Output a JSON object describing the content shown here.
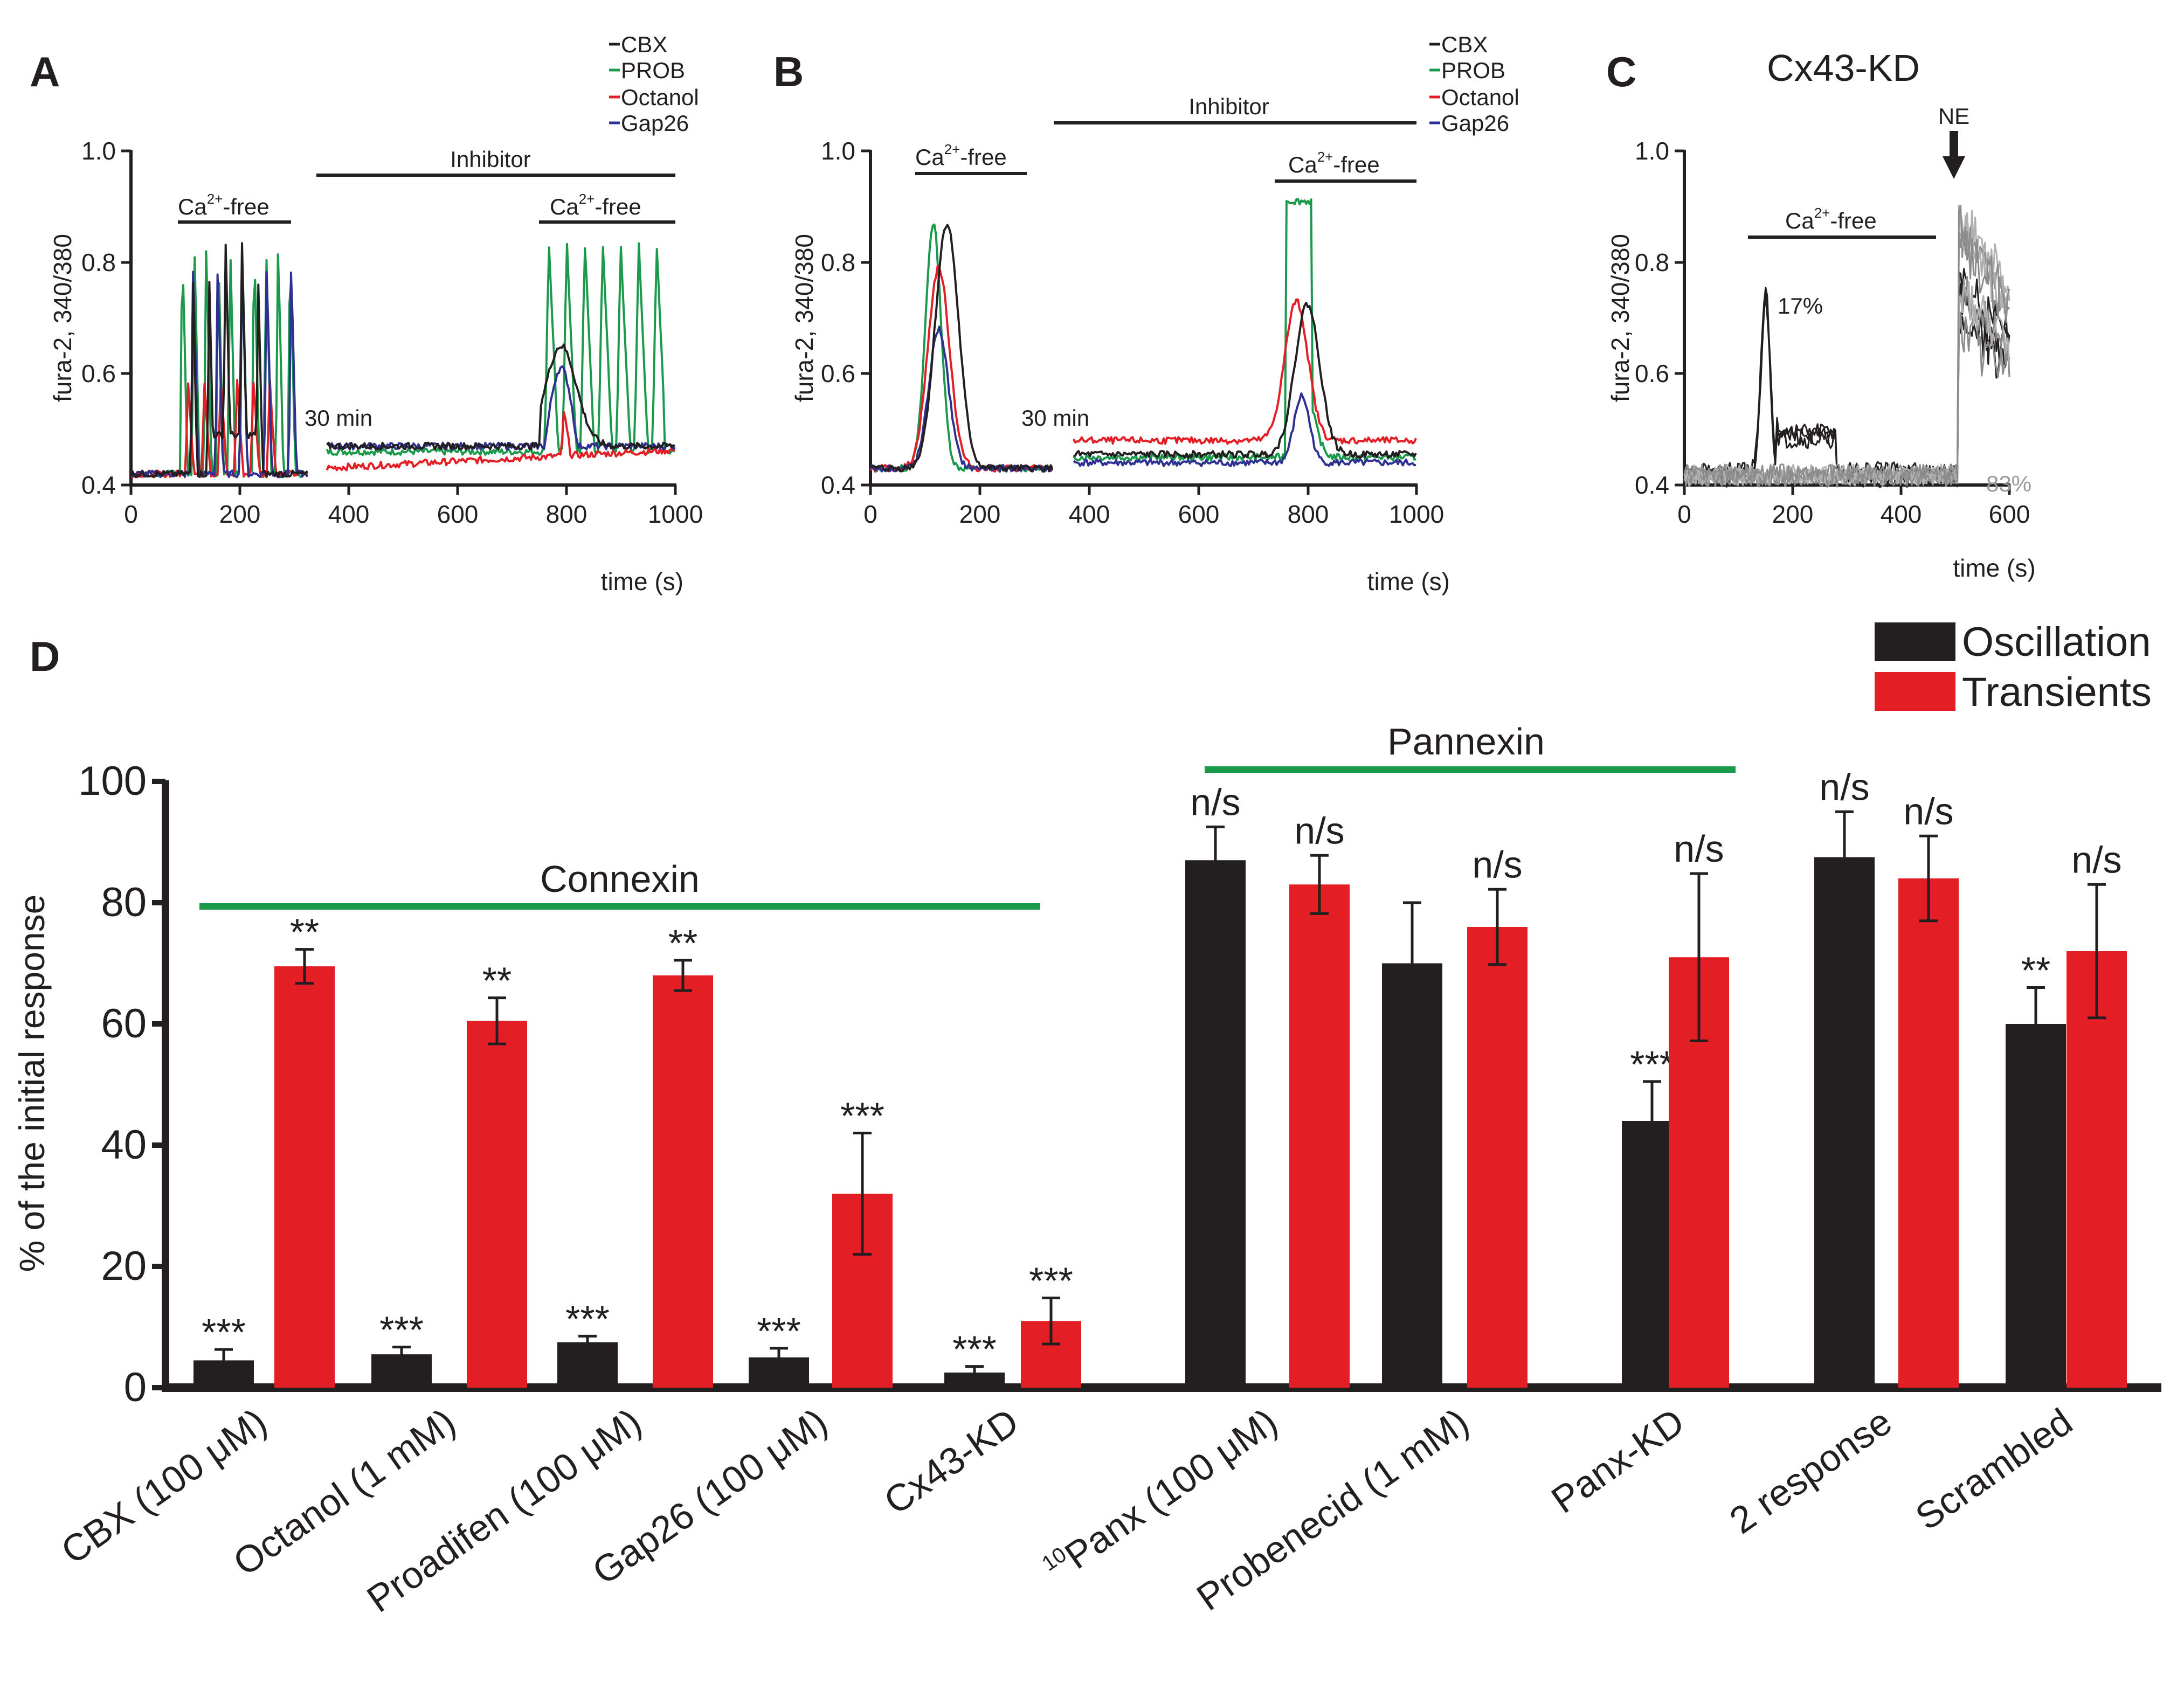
{
  "figure": {
    "panels": {
      "A": {
        "letter": "A"
      },
      "B": {
        "letter": "B"
      },
      "C": {
        "letter": "C",
        "title": "Cx43-KD"
      },
      "D": {
        "letter": "D"
      }
    }
  },
  "chart_data": [
    {
      "panel": "A",
      "type": "line",
      "ylabel": "fura-2, 340/380",
      "xlabel": "time (s)",
      "ylim": [
        0.4,
        1.0
      ],
      "xlim": [
        0,
        1000
      ],
      "yticks": [
        "0.4",
        "0.6",
        "0.8",
        "1.0"
      ],
      "xticks": [
        "0",
        "200",
        "400",
        "600",
        "800",
        "1000"
      ],
      "legend": [
        {
          "name": "CBX",
          "color": "#231f20"
        },
        {
          "name": "PROB",
          "color": "#1a9a4a"
        },
        {
          "name": "Octanol",
          "color": "#e31e24"
        },
        {
          "name": "Gap26",
          "color": "#2e3192"
        }
      ],
      "annotations": {
        "ca_free_1": "Ca",
        "ca_free_1_sup": "2+",
        "ca_free_1_suffix": "-free",
        "inhibitor": "Inhibitor",
        "ca_free_2": "Ca",
        "ca_free_2_sup": "2+",
        "ca_free_2_suffix": "-free",
        "gap": "30 min"
      },
      "bars_time": {
        "ca_free_1": [
          90,
          290
        ],
        "inhibitor": [
          345,
          1000
        ],
        "ca_free_2": [
          750,
          1000
        ]
      }
    },
    {
      "panel": "B",
      "type": "line",
      "ylabel": "fura-2, 340/380",
      "xlabel": "time (s)",
      "ylim": [
        0.4,
        1.0
      ],
      "xlim": [
        0,
        1000
      ],
      "yticks": [
        "0.4",
        "0.6",
        "0.8",
        "1.0"
      ],
      "xticks": [
        "0",
        "200",
        "400",
        "600",
        "800",
        "1000"
      ],
      "legend": [
        {
          "name": "CBX",
          "color": "#231f20"
        },
        {
          "name": "PROB",
          "color": "#1a9a4a"
        },
        {
          "name": "Octanol",
          "color": "#e31e24"
        },
        {
          "name": "Gap26",
          "color": "#2e3192"
        }
      ],
      "annotations": {
        "ca_free_1": "Ca",
        "ca_free_1_sup": "2+",
        "ca_free_1_suffix": "-free",
        "inhibitor": "Inhibitor",
        "ca_free_2": "Ca",
        "ca_free_2_sup": "2+",
        "ca_free_2_suffix": "-free",
        "gap": "30 min"
      }
    },
    {
      "panel": "C",
      "type": "line",
      "title": "Cx43-KD",
      "ylabel": "fura-2, 340/380",
      "xlabel": "time (s)",
      "ylim": [
        0.4,
        1.0
      ],
      "xlim": [
        0,
        600
      ],
      "yticks": [
        "0.4",
        "0.6",
        "0.8",
        "1.0"
      ],
      "xticks": [
        "0",
        "200",
        "400",
        "600"
      ],
      "annotations": {
        "ca_free": "Ca",
        "ca_free_sup": "2+",
        "ca_free_suffix": "-free",
        "ne": "NE",
        "pct_responders": "17%",
        "pct_nonresponders": "83%"
      }
    },
    {
      "panel": "D",
      "type": "bar",
      "ylabel": "% of the initial response",
      "ylim": [
        0,
        100
      ],
      "yticks": [
        "0",
        "20",
        "40",
        "60",
        "80",
        "100"
      ],
      "legend": [
        {
          "name": "Oscillation",
          "color": "#231f20"
        },
        {
          "name": "Transients",
          "color": "#e31e24"
        }
      ],
      "groups": [
        {
          "label": "Connexin",
          "color": "#1a9a4a"
        },
        {
          "label": "Pannexin",
          "color": "#1a9a4a"
        }
      ],
      "categories": [
        "CBX (100 μM)",
        "Octanol (1 mM)",
        "Proadifen (100 μM)",
        "Gap26 (100 μM)",
        "Cx43-KD",
        "Panx (100 μM)",
        "Probenecid (1 mM)",
        "Panx-KD",
        "2 response",
        "Scrambled"
      ],
      "category_prefix_sup": [
        "",
        "",
        "",
        "",
        "",
        "10",
        "",
        "",
        "",
        ""
      ],
      "series": [
        {
          "name": "Oscillation",
          "values": [
            4.5,
            5.5,
            7.5,
            5,
            2.5,
            87,
            70,
            44,
            87.5,
            60
          ],
          "errors": [
            1.8,
            1.2,
            1.0,
            1.5,
            1.0,
            5.5,
            10,
            6.5,
            7.5,
            6
          ],
          "significance": [
            "***",
            "***",
            "***",
            "***",
            "***",
            "n/s",
            "",
            "***",
            "n/s",
            "**"
          ]
        },
        {
          "name": "Transients",
          "values": [
            69.5,
            60.5,
            68,
            32,
            11,
            83,
            76,
            71,
            84,
            72
          ],
          "errors": [
            2.8,
            3.8,
            2.5,
            10,
            3.8,
            4.8,
            6.2,
            13.8,
            7,
            11
          ],
          "significance": [
            "**",
            "**",
            "**",
            "***",
            "***",
            "n/s",
            "n/s",
            "n/s",
            "n/s",
            "n/s"
          ]
        }
      ]
    }
  ]
}
